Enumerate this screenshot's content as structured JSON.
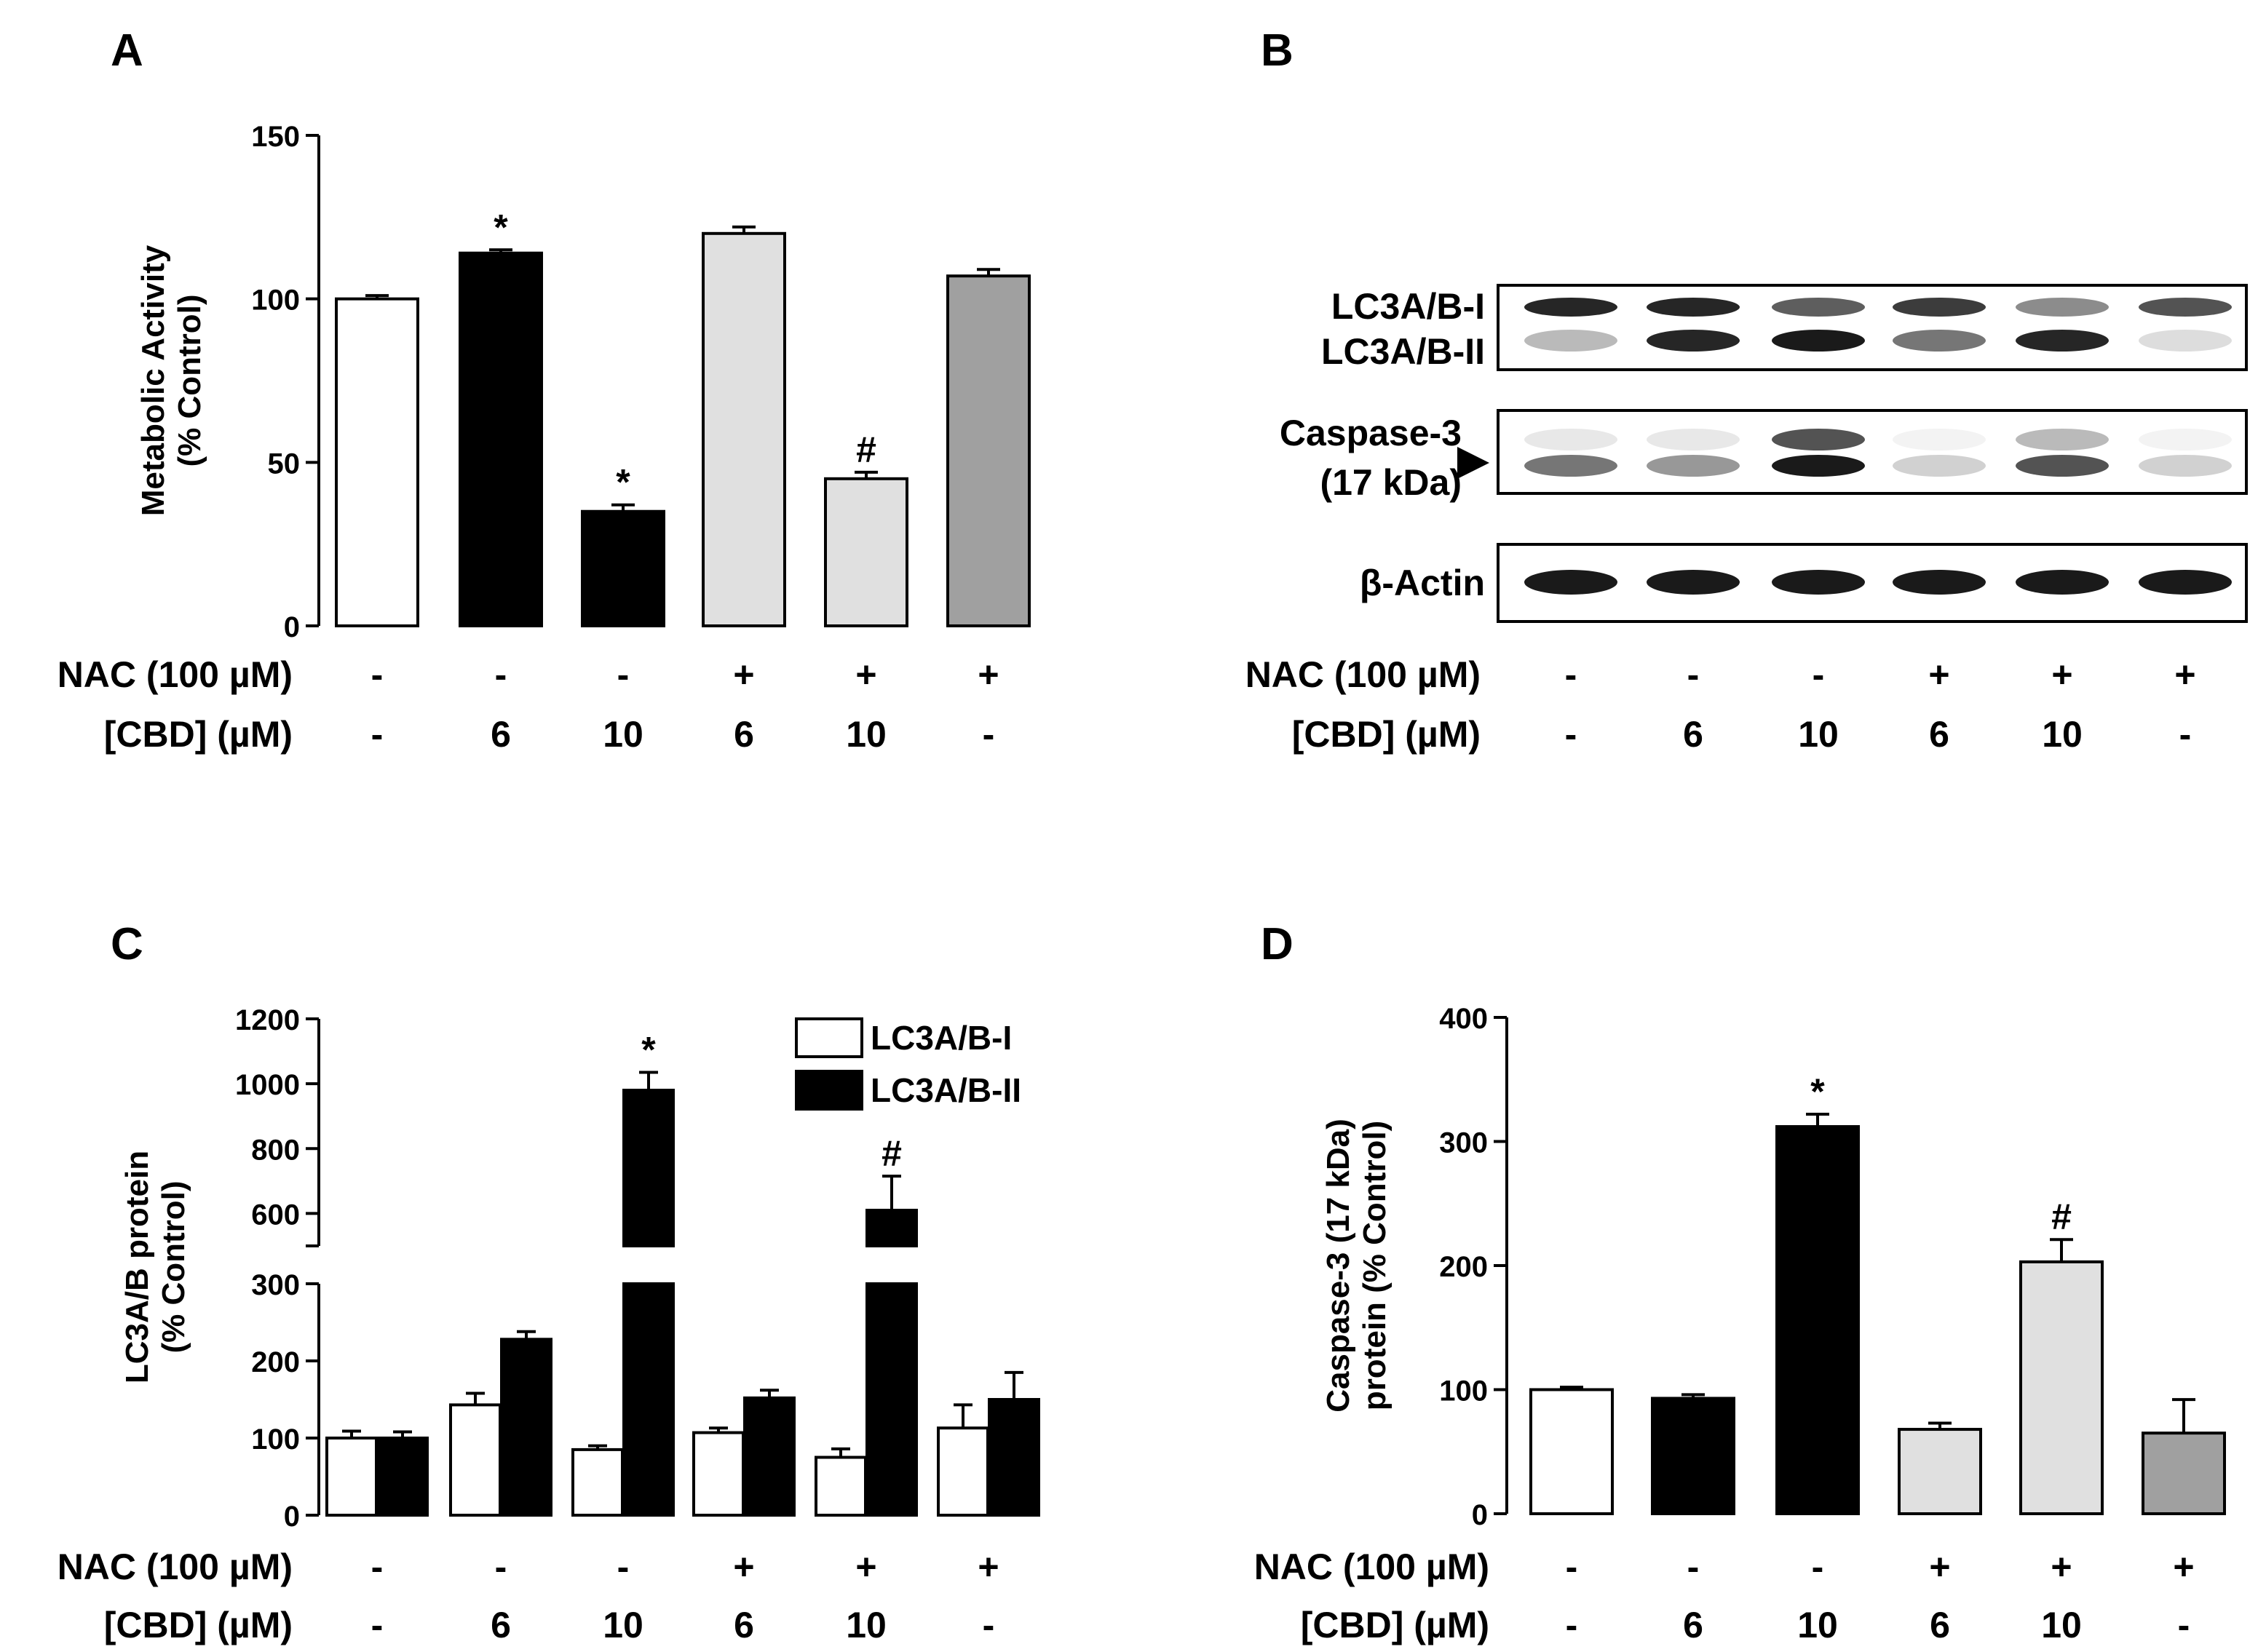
{
  "colors": {
    "control": "#ffffff",
    "cbd": "#000000",
    "nac_cbd": "#e0e0e0",
    "nac": "#a0a0a0",
    "ink": "#000000"
  },
  "treatments": {
    "nac_label": "NAC (100 µM)",
    "cbd_label": "[CBD] (µM)",
    "nac": [
      "-",
      "-",
      "-",
      "+",
      "+",
      "+"
    ],
    "cbd": [
      "-",
      "6",
      "10",
      "6",
      "10",
      "-"
    ]
  },
  "blot": {
    "panel_letter": "B",
    "labels": {
      "lc3_i": "LC3A/B-I",
      "lc3_ii": "LC3A/B-II",
      "casp_line1": "Caspase-3",
      "casp_line2": "(17 kDa)",
      "actin": "β-Actin"
    },
    "band_intensity": {
      "lc3_i": [
        0.95,
        0.95,
        0.7,
        0.85,
        0.5,
        0.75
      ],
      "lc3_ii": [
        0.3,
        0.95,
        1.0,
        0.6,
        0.95,
        0.15
      ],
      "casp_upper": [
        0.1,
        0.1,
        0.75,
        0.05,
        0.3,
        0.05
      ],
      "casp_lower": [
        0.6,
        0.45,
        1.0,
        0.2,
        0.75,
        0.2
      ],
      "actin": [
        1.0,
        1.0,
        1.0,
        1.0,
        1.0,
        1.0
      ]
    }
  },
  "chart_data": [
    {
      "panel": "A",
      "type": "bar",
      "title": "",
      "ylabel_line1": "Metabolic Activity",
      "ylabel_line2": "(% Control)",
      "ylim": [
        0,
        150
      ],
      "yticks": [
        "0",
        "50",
        "100",
        "150"
      ],
      "categories": [
        "1",
        "2",
        "3",
        "4",
        "5",
        "6"
      ],
      "values": [
        100,
        114,
        35,
        120,
        45,
        107
      ],
      "errors": [
        1,
        1,
        2,
        2,
        2,
        2
      ],
      "groups": [
        "control",
        "cbd",
        "cbd",
        "nac_cbd",
        "nac_cbd",
        "nac"
      ],
      "annotations": [
        "",
        "*",
        "*",
        "",
        "#",
        ""
      ]
    },
    {
      "panel": "C",
      "type": "bar",
      "title": "",
      "ylabel_line1": "LC3A/B protein",
      "ylabel_line2": "(% Control)",
      "broken_axis": true,
      "ylim_lower": [
        0,
        300
      ],
      "ylim_upper": [
        500,
        1200
      ],
      "yticks_lower": [
        "0",
        "100",
        "200",
        "300"
      ],
      "yticks_upper": [
        "600",
        "800",
        "1000",
        "1200"
      ],
      "legend": [
        "LC3A/B-I",
        "LC3A/B-II"
      ],
      "series": [
        {
          "name": "LC3A/B-I",
          "values": [
            100,
            143,
            85,
            107,
            75,
            113
          ],
          "errors": [
            9,
            15,
            5,
            6,
            11,
            30
          ],
          "annotations": [
            "",
            "",
            "",
            "",
            "",
            ""
          ]
        },
        {
          "name": "LC3A/B-II",
          "values": [
            100,
            228,
            980,
            152,
            610,
            150
          ],
          "errors": [
            8,
            10,
            55,
            10,
            105,
            35
          ],
          "annotations": [
            "",
            "",
            "*",
            "",
            "#",
            ""
          ]
        }
      ]
    },
    {
      "panel": "D",
      "type": "bar",
      "title": "",
      "ylabel_line1": "Caspase-3 (17 kDa)",
      "ylabel_line2": "protein (% Control)",
      "ylim": [
        0,
        400
      ],
      "yticks": [
        "0",
        "100",
        "200",
        "300",
        "400"
      ],
      "categories": [
        "1",
        "2",
        "3",
        "4",
        "5",
        "6"
      ],
      "values": [
        100,
        93,
        312,
        68,
        203,
        65
      ],
      "errors": [
        2,
        3,
        10,
        5,
        18,
        27
      ],
      "groups": [
        "control",
        "cbd",
        "cbd",
        "nac_cbd",
        "nac_cbd",
        "nac"
      ],
      "annotations": [
        "",
        "",
        "*",
        "",
        "#",
        ""
      ]
    }
  ]
}
